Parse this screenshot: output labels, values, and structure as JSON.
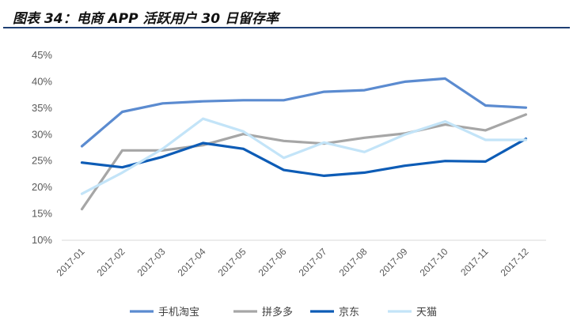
{
  "figure": {
    "title": "图表 34：电商 APP 活跃用户 30 日留存率"
  },
  "chart_data": {
    "type": "line",
    "title": "图表 34：电商 APP 活跃用户 30 日留存率",
    "xlabel": "",
    "ylabel": "",
    "categories": [
      "2017-01",
      "2017-02",
      "2017-03",
      "2017-04",
      "2017-05",
      "2017-06",
      "2017-07",
      "2017-08",
      "2017-09",
      "2017-10",
      "2017-11",
      "2017-12"
    ],
    "yticks": [
      "10%",
      "15%",
      "20%",
      "25%",
      "30%",
      "35%",
      "40%",
      "45%"
    ],
    "ylim": [
      10,
      45
    ],
    "grid": false,
    "legend_position": "bottom",
    "series": [
      {
        "name": "手机淘宝",
        "color": "#5b8bd0",
        "values": [
          27.8,
          34.3,
          35.9,
          36.3,
          36.5,
          36.5,
          38.1,
          38.4,
          40.0,
          40.6,
          35.5,
          35.1
        ]
      },
      {
        "name": "拼多多",
        "color": "#a6a6a6",
        "values": [
          15.9,
          27.0,
          27.0,
          28.0,
          30.1,
          28.8,
          28.3,
          29.4,
          30.2,
          31.9,
          30.8,
          33.8
        ]
      },
      {
        "name": "京东",
        "color": "#0d5cb6",
        "values": [
          24.7,
          23.8,
          25.8,
          28.4,
          27.3,
          23.3,
          22.2,
          22.8,
          24.1,
          25.0,
          24.9,
          29.2
        ]
      },
      {
        "name": "天猫",
        "color": "#c3e4f8",
        "values": [
          18.8,
          22.8,
          27.3,
          33.0,
          30.6,
          25.6,
          28.5,
          26.7,
          30.0,
          32.5,
          29.0,
          29.0
        ]
      }
    ]
  }
}
